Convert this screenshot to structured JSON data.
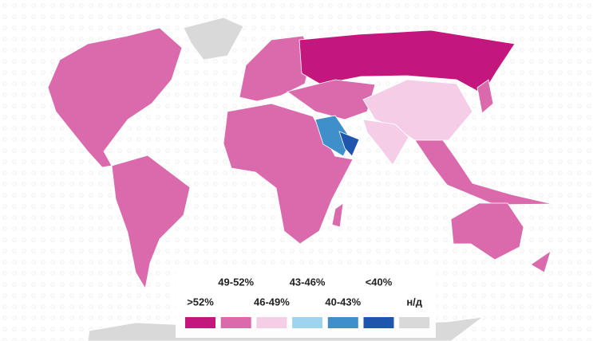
{
  "legend": {
    "items": [
      {
        "label": ">52%",
        "color": "#c4177e"
      },
      {
        "label": "49-52%",
        "color": "#db6aac"
      },
      {
        "label": "46-49%",
        "color": "#f5cde6"
      },
      {
        "label": "43-46%",
        "color": "#9fd4f0"
      },
      {
        "label": "40-43%",
        "color": "#3f8fcb"
      },
      {
        "label": "<40%",
        "color": "#1f55ad"
      },
      {
        "label": "н/д",
        "color": "#d9d9d9"
      }
    ]
  }
}
